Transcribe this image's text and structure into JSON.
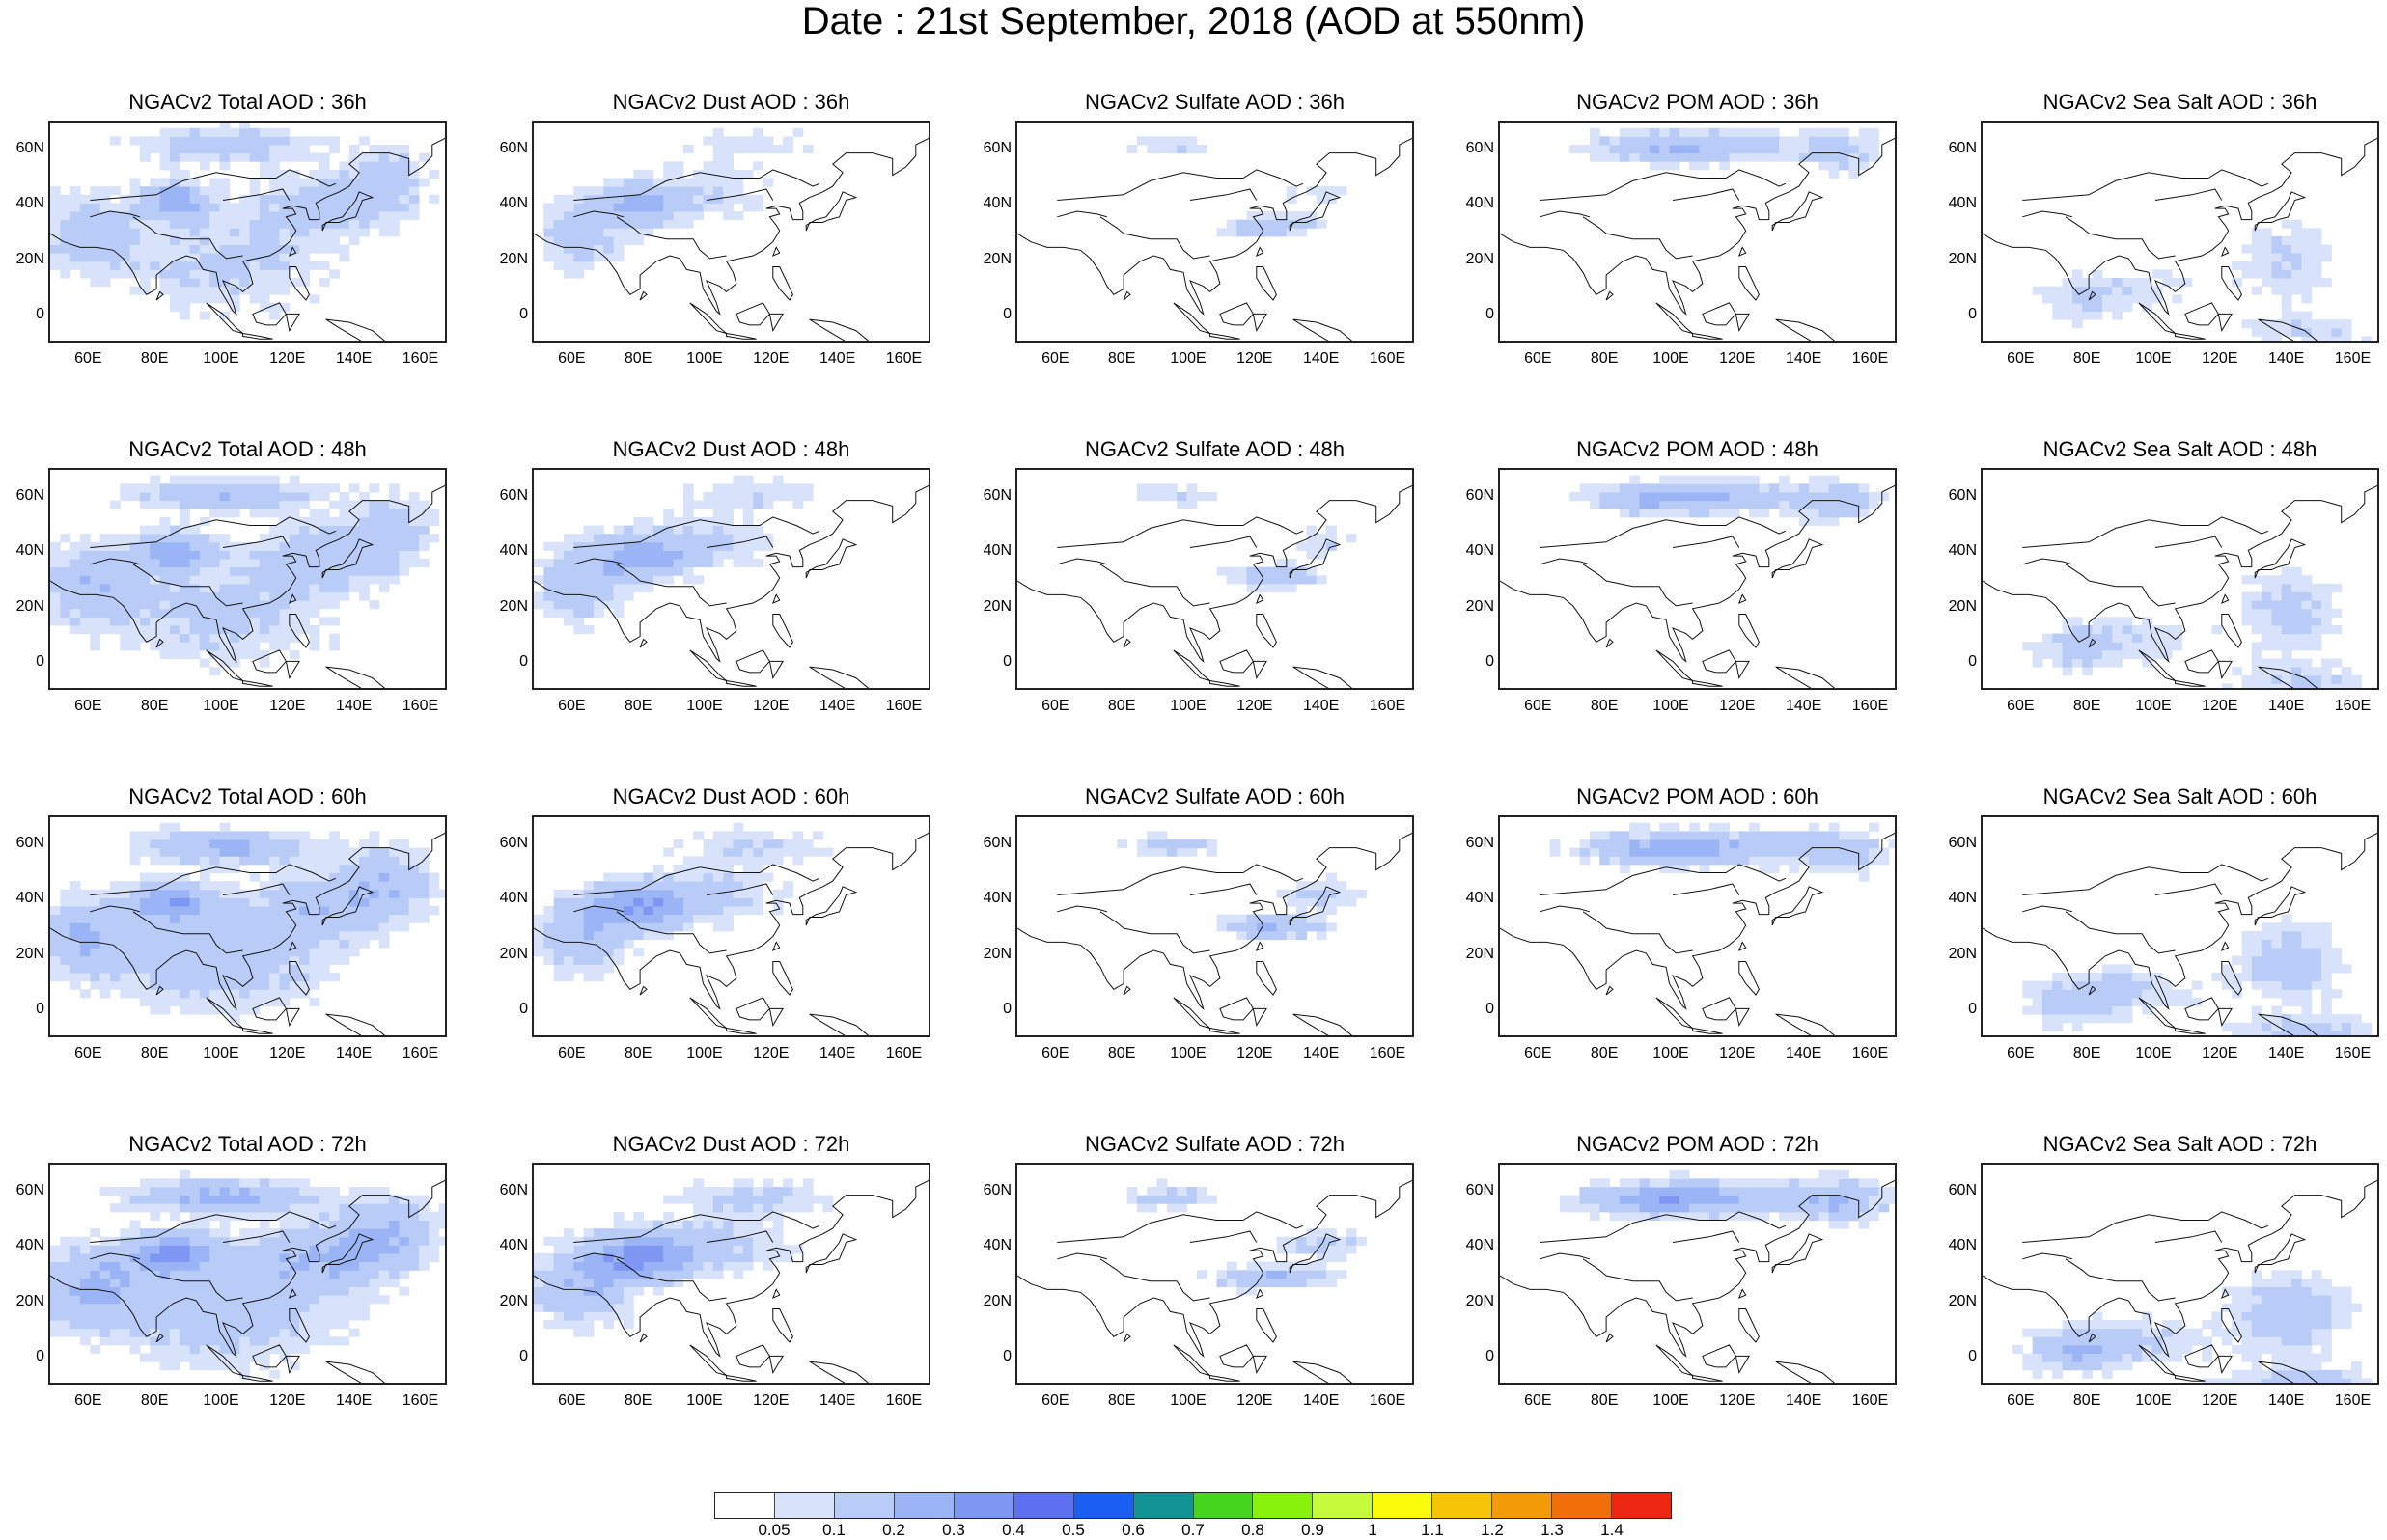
{
  "title": "Date : 21st September, 2018 (AOD at 550nm)",
  "panel_titles": [
    [
      "NGACv2 Total AOD : 36h",
      "NGACv2 Dust AOD : 36h",
      "NGACv2 Sulfate AOD : 36h",
      "NGACv2 POM AOD : 36h",
      "NGACv2 Sea Salt AOD : 36h"
    ],
    [
      "NGACv2 Total AOD : 48h",
      "NGACv2 Dust AOD : 48h",
      "NGACv2 Sulfate AOD : 48h",
      "NGACv2 POM AOD : 48h",
      "NGACv2 Sea Salt AOD : 48h"
    ],
    [
      "NGACv2 Total AOD : 60h",
      "NGACv2 Dust AOD : 60h",
      "NGACv2 Sulfate AOD : 60h",
      "NGACv2 POM AOD : 60h",
      "NGACv2 Sea Salt AOD : 60h"
    ],
    [
      "NGACv2 Total AOD : 72h",
      "NGACv2 Dust AOD : 72h",
      "NGACv2 Sulfate AOD : 72h",
      "NGACv2 POM AOD : 72h",
      "NGACv2 Sea Salt  AOD : 72h"
    ]
  ],
  "latitude_ticks": [
    "60N",
    "40N",
    "20N",
    "0"
  ],
  "longitude_ticks": [
    "60E",
    "80E",
    "100E",
    "120E",
    "140E",
    "160E"
  ],
  "colorbar": {
    "labels": [
      "0.05",
      "0.1",
      "0.2",
      "0.3",
      "0.4",
      "0.5",
      "0.6",
      "0.7",
      "0.8",
      "0.9",
      "1",
      "1.1",
      "1.2",
      "1.3",
      "1.4"
    ],
    "colors": [
      "#ffffff",
      "#d8e3fb",
      "#b9ccf8",
      "#9bb4f6",
      "#7d97f3",
      "#5e6ff0",
      "#1a5ef2",
      "#129494",
      "#46d51f",
      "#88f20d",
      "#c5fb3a",
      "#fbfb0c",
      "#f6c507",
      "#f39b07",
      "#f16e0a",
      "#ee2713"
    ]
  }
}
